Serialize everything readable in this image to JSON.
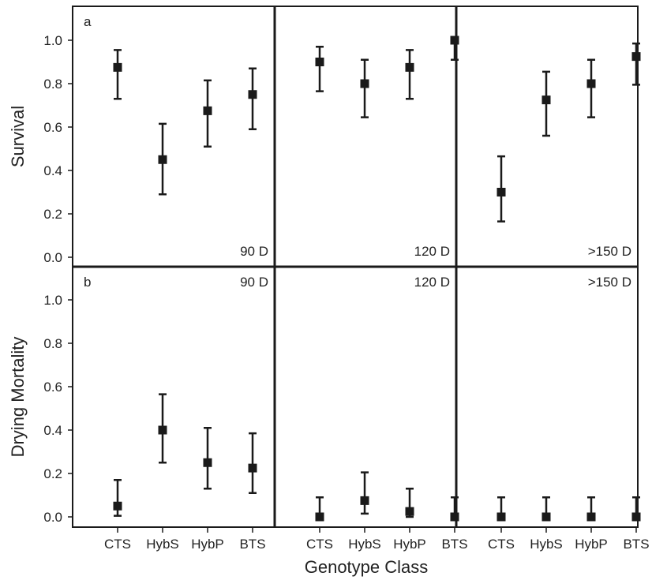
{
  "chart_data": {
    "type": "scatter",
    "layout": "2x3 panel grid with error bars",
    "xlabel": "Genotype Class",
    "categories": [
      "CTS",
      "HybS",
      "HybP",
      "BTS"
    ],
    "columns": [
      "90 D",
      "120 D",
      ">150 D"
    ],
    "ylim": [
      0,
      1.1
    ],
    "yticks": [
      "0.0",
      "0.2",
      "0.4",
      "0.6",
      "0.8",
      "1.0"
    ],
    "rows": [
      {
        "tag": "a",
        "ylabel": "Survival",
        "day_label_position": "bottom-right",
        "panels": [
          {
            "day": "90 D",
            "points": [
              {
                "category": "CTS",
                "y": 0.875,
                "lo": 0.73,
                "hi": 0.955
              },
              {
                "category": "HybS",
                "y": 0.45,
                "lo": 0.29,
                "hi": 0.615
              },
              {
                "category": "HybP",
                "y": 0.675,
                "lo": 0.51,
                "hi": 0.815
              },
              {
                "category": "BTS",
                "y": 0.75,
                "lo": 0.59,
                "hi": 0.87
              }
            ]
          },
          {
            "day": "120 D",
            "points": [
              {
                "category": "CTS",
                "y": 0.9,
                "lo": 0.765,
                "hi": 0.97
              },
              {
                "category": "HybS",
                "y": 0.8,
                "lo": 0.645,
                "hi": 0.91
              },
              {
                "category": "HybP",
                "y": 0.875,
                "lo": 0.73,
                "hi": 0.955
              },
              {
                "category": "BTS",
                "y": 1.0,
                "lo": 0.91,
                "hi": 1.0
              }
            ]
          },
          {
            "day": ">150 D",
            "points": [
              {
                "category": "CTS",
                "y": 0.3,
                "lo": 0.165,
                "hi": 0.465
              },
              {
                "category": "HybS",
                "y": 0.725,
                "lo": 0.56,
                "hi": 0.855
              },
              {
                "category": "HybP",
                "y": 0.8,
                "lo": 0.645,
                "hi": 0.91
              },
              {
                "category": "BTS",
                "y": 0.925,
                "lo": 0.795,
                "hi": 0.985
              }
            ]
          }
        ]
      },
      {
        "tag": "b",
        "ylabel": "Drying Mortality",
        "day_label_position": "top-right",
        "panels": [
          {
            "day": "90 D",
            "points": [
              {
                "category": "CTS",
                "y": 0.05,
                "lo": 0.005,
                "hi": 0.17
              },
              {
                "category": "HybS",
                "y": 0.4,
                "lo": 0.25,
                "hi": 0.565
              },
              {
                "category": "HybP",
                "y": 0.25,
                "lo": 0.13,
                "hi": 0.41
              },
              {
                "category": "BTS",
                "y": 0.225,
                "lo": 0.11,
                "hi": 0.385
              }
            ]
          },
          {
            "day": "120 D",
            "points": [
              {
                "category": "CTS",
                "y": 0.0,
                "lo": 0.0,
                "hi": 0.09
              },
              {
                "category": "HybS",
                "y": 0.075,
                "lo": 0.015,
                "hi": 0.205
              },
              {
                "category": "HybP",
                "y": 0.025,
                "lo": 0.0,
                "hi": 0.13
              },
              {
                "category": "BTS",
                "y": 0.0,
                "lo": 0.0,
                "hi": 0.09
              }
            ]
          },
          {
            "day": ">150 D",
            "points": [
              {
                "category": "CTS",
                "y": 0.0,
                "lo": 0.0,
                "hi": 0.09
              },
              {
                "category": "HybS",
                "y": 0.0,
                "lo": 0.0,
                "hi": 0.09
              },
              {
                "category": "HybP",
                "y": 0.0,
                "lo": 0.0,
                "hi": 0.09
              },
              {
                "category": "BTS",
                "y": 0.0,
                "lo": 0.0,
                "hi": 0.09
              }
            ]
          }
        ]
      }
    ],
    "colors": {
      "ink": "#1a1a1a",
      "text": "#222222",
      "background": "#ffffff"
    }
  }
}
